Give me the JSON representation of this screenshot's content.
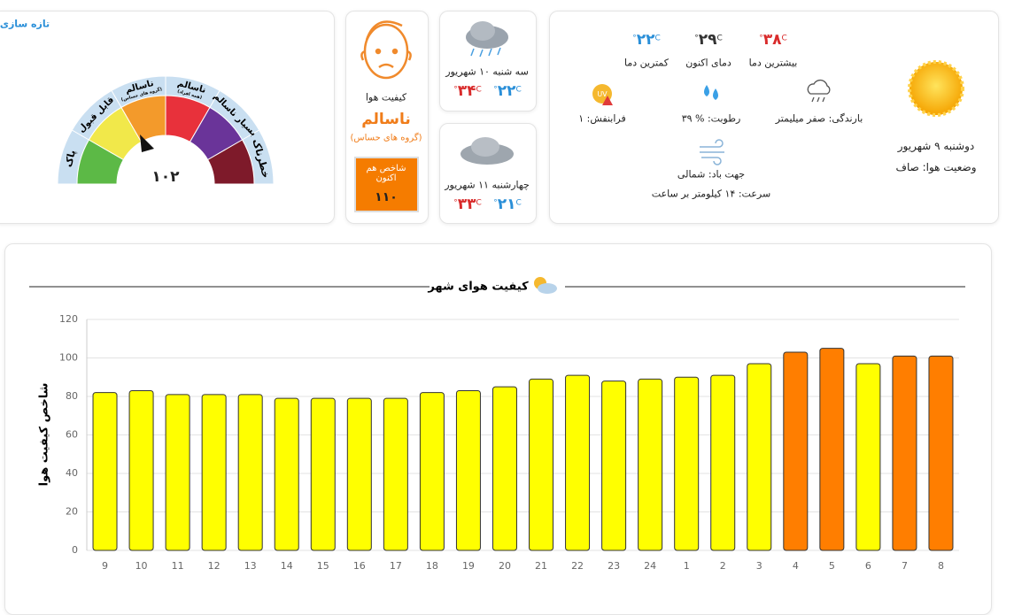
{
  "refresh": "تازه سازی",
  "gauge": {
    "labels": [
      "پاک",
      "قابل قبول",
      "ناسالم",
      "(گروه های حساس)",
      "ناسالم",
      "(همه افراد)",
      "بسیار ناسالم",
      "خطرناک"
    ],
    "value": "۱۰۲"
  },
  "aqi_card": {
    "title": "کیفیت هوا",
    "status": "ناسالم",
    "group": "(گروه های حساس)",
    "now_label": "شاخص هم اکنون",
    "now_value": "۱۱۰"
  },
  "unit": "C°",
  "forecast": [
    {
      "day": "سه شنبه ۱۰ شهریور",
      "max": "۳۴",
      "min": "۲۲"
    },
    {
      "day": "چهارشنبه ۱۱ شهریور",
      "max": "۳۳",
      "min": "۲۱"
    }
  ],
  "today": {
    "max": "۳۸",
    "max_label": "بیشترین دما",
    "now": "۲۹",
    "now_label": "دمای اکنون",
    "min": "۲۲",
    "min_label": "کمترین دما",
    "rain": "بارندگی: صفر میلیمتر",
    "humidity": "رطوبت: % ۳۹",
    "uv": "فرابنفش: ۱",
    "uv_icon": "UV",
    "wind_direction": "جهت باد: شمالی",
    "wind_speed": "سرعت: ۱۴ کیلومتر بر ساعت",
    "date": "دوشنبه ۹ شهریور",
    "condition": "وضعیت هوا: صاف"
  },
  "chart_data": {
    "type": "bar",
    "title": "کیفیت هوای شهر",
    "ylabel": "شاخص کیفیت هوا",
    "categories": [
      "9",
      "10",
      "11",
      "12",
      "13",
      "14",
      "15",
      "16",
      "17",
      "18",
      "19",
      "20",
      "21",
      "22",
      "23",
      "24",
      "1",
      "2",
      "3",
      "4",
      "5",
      "6",
      "7",
      "8"
    ],
    "values": [
      82,
      83,
      81,
      81,
      81,
      79,
      79,
      79,
      79,
      82,
      83,
      85,
      89,
      91,
      88,
      89,
      90,
      91,
      97,
      103,
      105,
      97,
      101,
      101
    ],
    "colors": [
      "#ffff00",
      "#ffff00",
      "#ffff00",
      "#ffff00",
      "#ffff00",
      "#ffff00",
      "#ffff00",
      "#ffff00",
      "#ffff00",
      "#ffff00",
      "#ffff00",
      "#ffff00",
      "#ffff00",
      "#ffff00",
      "#ffff00",
      "#ffff00",
      "#ffff00",
      "#ffff00",
      "#ffff00",
      "#ff7e00",
      "#ff7e00",
      "#ffff00",
      "#ff7e00",
      "#ff7e00"
    ],
    "ylim": [
      0,
      120
    ],
    "yticks": [
      0,
      20,
      40,
      60,
      80,
      100,
      120
    ],
    "grid": true
  }
}
